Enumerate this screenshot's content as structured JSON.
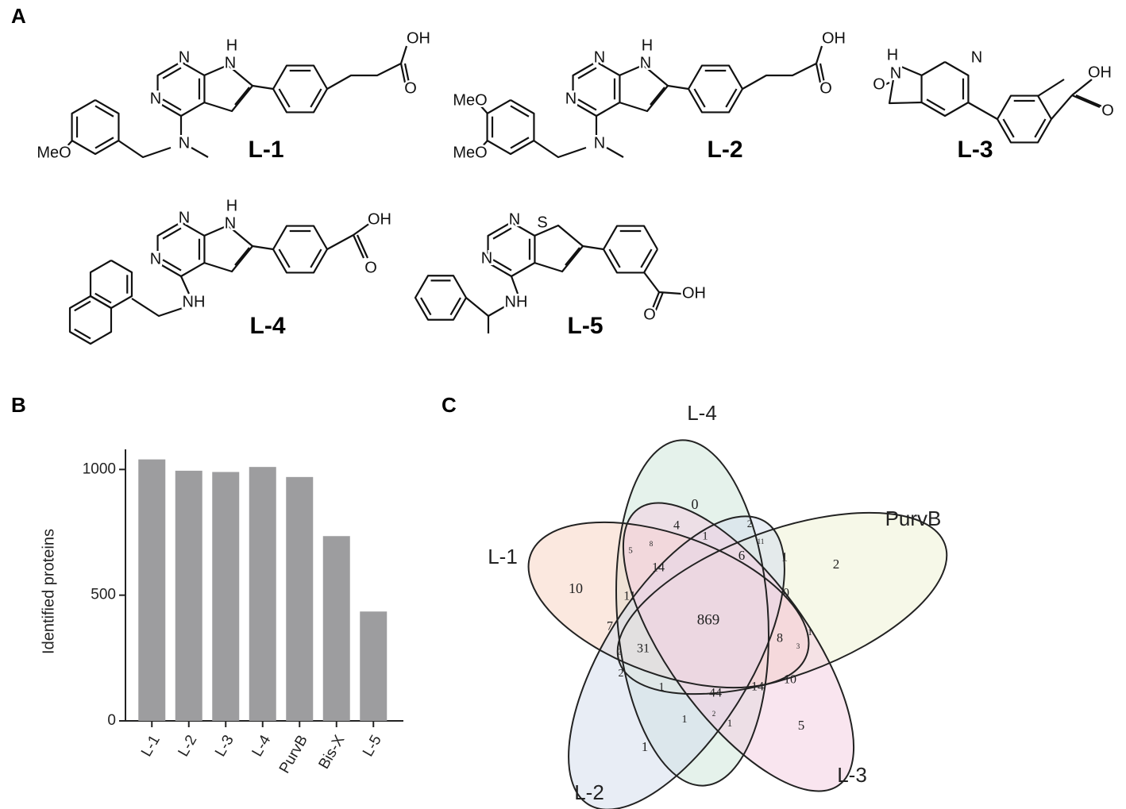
{
  "panel_labels": [
    "A",
    "B",
    "C"
  ],
  "structures": [
    {
      "label": "L-1",
      "atoms": [
        "N",
        "N",
        "H",
        "N",
        "N",
        "OH",
        "O",
        "MeO"
      ]
    },
    {
      "label": "L-2",
      "atoms": [
        "N",
        "N",
        "H",
        "N",
        "N",
        "OH",
        "O",
        "MeO",
        "MeO"
      ]
    },
    {
      "label": "L-3",
      "atoms": [
        "H",
        "N",
        "N",
        "O",
        "OH",
        "O"
      ]
    },
    {
      "label": "L-4",
      "atoms": [
        "N",
        "N",
        "H",
        "N",
        "NH",
        "OH",
        "O"
      ]
    },
    {
      "label": "L-5",
      "atoms": [
        "N",
        "S",
        "N",
        "NH",
        "OH",
        "O"
      ]
    }
  ],
  "chart_data": [
    {
      "type": "bar",
      "ylabel": "Identified proteins",
      "categories": [
        "L-1",
        "L-2",
        "L-3",
        "L-4",
        "PurvB",
        "Bis-X",
        "L-5"
      ],
      "values": [
        1040,
        995,
        990,
        1010,
        970,
        735,
        435
      ],
      "color": "#9d9d9f",
      "ylim": [
        0,
        1080
      ],
      "yticks": [
        0,
        500,
        1000
      ]
    },
    {
      "type": "venn",
      "sets": [
        {
          "name": "L-4",
          "color": "#cfe8da"
        },
        {
          "name": "PurvB",
          "color": "#eef3d6"
        },
        {
          "name": "L-1",
          "color": "#f8d6c4"
        },
        {
          "name": "L-2",
          "color": "#d6deec"
        },
        {
          "name": "L-3",
          "color": "#f4d0e2"
        }
      ],
      "regions": [
        0,
        4,
        2,
        1,
        11,
        5,
        8,
        14,
        6,
        1,
        2,
        10,
        11,
        0,
        869,
        7,
        1,
        8,
        2,
        31,
        3,
        2,
        10,
        14,
        1,
        44,
        1,
        2,
        1,
        5,
        1
      ]
    }
  ]
}
